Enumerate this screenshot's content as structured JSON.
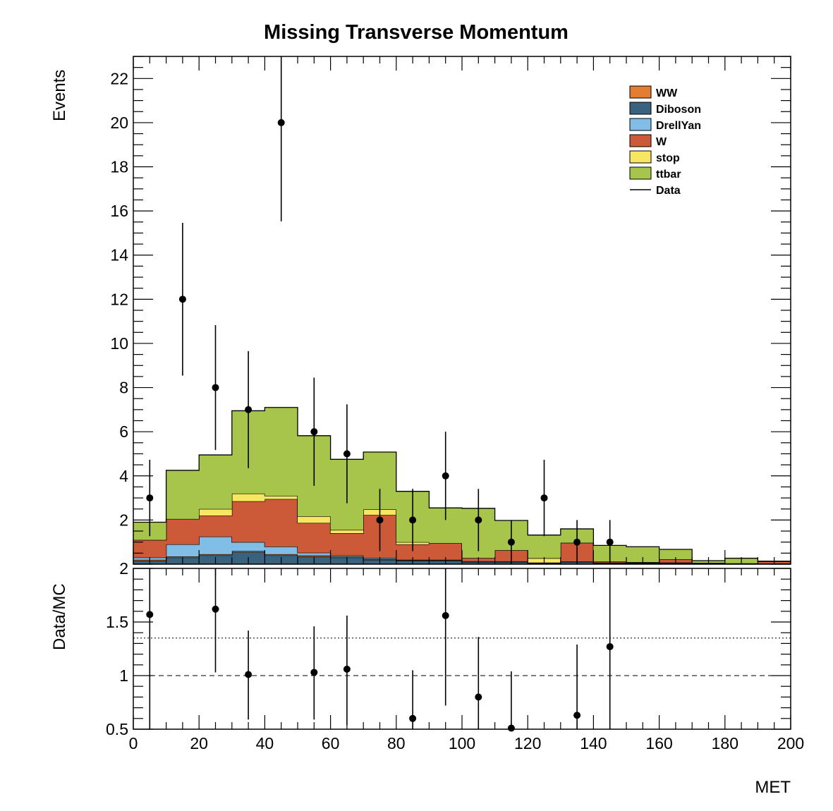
{
  "colors": {
    "WW": "#e27d32",
    "Diboson": "#39627f",
    "DrellYan": "#80bde7",
    "W": "#cc5a39",
    "stop": "#f7e661",
    "ttbar": "#a7c44b",
    "Data": "#000000"
  },
  "chart_data": [
    {
      "type": "bar",
      "stacked": true,
      "title": "Missing Transverse Momentum",
      "xlabel": "",
      "ylabel": "Events",
      "xlim": [
        0,
        200
      ],
      "ylim": [
        0,
        23
      ],
      "bin_edges": [
        0,
        10,
        20,
        30,
        40,
        50,
        60,
        70,
        80,
        90,
        100,
        110,
        120,
        130,
        140,
        150,
        160,
        170,
        180,
        190,
        200
      ],
      "x_ticks": [
        "0",
        "20",
        "40",
        "60",
        "80",
        "100",
        "120",
        "140",
        "160",
        "180",
        "200"
      ],
      "y_ticks": [
        "2",
        "4",
        "6",
        "8",
        "10",
        "12",
        "14",
        "16",
        "18",
        "20",
        "22"
      ],
      "legend_position": "top-right",
      "legend": [
        "WW",
        "Diboson",
        "DrellYan",
        "W",
        "stop",
        "ttbar",
        "Data"
      ],
      "series": [
        {
          "name": "Diboson",
          "values": [
            0.15,
            0.3,
            0.4,
            0.55,
            0.4,
            0.35,
            0.3,
            0.2,
            0.15,
            0.15,
            0.1,
            0.1,
            0.05,
            0.1,
            0.05,
            0.05,
            0.05,
            0.03,
            0.03,
            0.02
          ]
        },
        {
          "name": "WW",
          "values": [
            0.05,
            0.05,
            0.05,
            0.05,
            0.05,
            0.05,
            0.05,
            0.03,
            0.03,
            0.03,
            0.03,
            0.03,
            0.02,
            0.02,
            0.02,
            0.02,
            0.02,
            0.01,
            0.01,
            0.01
          ]
        },
        {
          "name": "DrellYan",
          "values": [
            0.1,
            0.55,
            0.8,
            0.4,
            0.35,
            0.12,
            0.05,
            0.05,
            0.02,
            0.02,
            0.0,
            0.0,
            0.0,
            0.0,
            0.0,
            0.0,
            0.0,
            0.0,
            0.0,
            0.0
          ]
        },
        {
          "name": "W",
          "values": [
            0.8,
            1.15,
            0.95,
            1.85,
            2.15,
            1.35,
            1.0,
            1.95,
            0.7,
            0.75,
            0.15,
            0.5,
            0.0,
            0.85,
            0.05,
            0.02,
            0.15,
            0.02,
            0.0,
            0.1
          ]
        },
        {
          "name": "stop",
          "values": [
            0.0,
            0.0,
            0.3,
            0.35,
            0.15,
            0.3,
            0.15,
            0.25,
            0.1,
            0.0,
            0.0,
            0.0,
            0.2,
            0.0,
            0.0,
            0.0,
            0.0,
            0.0,
            0.0,
            0.0
          ]
        },
        {
          "name": "ttbar",
          "values": [
            0.8,
            2.2,
            2.45,
            3.75,
            4.0,
            3.65,
            3.2,
            2.6,
            2.3,
            1.6,
            2.25,
            1.35,
            1.05,
            0.63,
            0.73,
            0.7,
            0.45,
            0.1,
            0.23,
            0.0
          ]
        }
      ],
      "data_points": [
        {
          "x": 5,
          "y": 3,
          "err": 1.73
        },
        {
          "x": 15,
          "y": 12,
          "err": 3.46
        },
        {
          "x": 25,
          "y": 8,
          "err": 2.83
        },
        {
          "x": 35,
          "y": 7,
          "err": 2.65
        },
        {
          "x": 45,
          "y": 20,
          "err": 4.47
        },
        {
          "x": 55,
          "y": 6,
          "err": 2.45
        },
        {
          "x": 65,
          "y": 5,
          "err": 2.24
        },
        {
          "x": 75,
          "y": 2,
          "err": 1.41
        },
        {
          "x": 85,
          "y": 2,
          "err": 1.41
        },
        {
          "x": 95,
          "y": 4,
          "err": 2.0
        },
        {
          "x": 105,
          "y": 2,
          "err": 1.41
        },
        {
          "x": 115,
          "y": 1,
          "err": 1.0
        },
        {
          "x": 125,
          "y": 3,
          "err": 1.73
        },
        {
          "x": 135,
          "y": 1,
          "err": 1.0
        },
        {
          "x": 145,
          "y": 1,
          "err": 1.0
        }
      ]
    },
    {
      "type": "scatter",
      "title": "",
      "xlabel": "MET",
      "ylabel": "Data/MC",
      "xlim": [
        0,
        200
      ],
      "ylim": [
        0.5,
        2.0
      ],
      "x_ticks": [
        "0",
        "20",
        "40",
        "60",
        "80",
        "100",
        "120",
        "140",
        "160",
        "180",
        "200"
      ],
      "y_ticks": [
        "0.5",
        "1",
        "1.5",
        "2"
      ],
      "reference_lines": [
        {
          "y": 1.0,
          "style": "dashed"
        },
        {
          "y": 1.35,
          "style": "dotted"
        }
      ],
      "points": [
        {
          "x": 5,
          "y": 1.57,
          "lo": 0.5,
          "hi": 2.0
        },
        {
          "x": 25,
          "y": 1.62,
          "lo": 1.03,
          "hi": 2.0
        },
        {
          "x": 35,
          "y": 1.01,
          "lo": 0.59,
          "hi": 1.42
        },
        {
          "x": 55,
          "y": 1.03,
          "lo": 0.59,
          "hi": 1.46
        },
        {
          "x": 65,
          "y": 1.06,
          "lo": 0.54,
          "hi": 1.56
        },
        {
          "x": 85,
          "y": 0.6,
          "lo": 0.5,
          "hi": 1.05
        },
        {
          "x": 95,
          "y": 1.56,
          "lo": 0.72,
          "hi": 2.0
        },
        {
          "x": 105,
          "y": 0.8,
          "lo": 0.5,
          "hi": 1.36
        },
        {
          "x": 115,
          "y": 0.51,
          "lo": 0.5,
          "hi": 1.04
        },
        {
          "x": 135,
          "y": 0.63,
          "lo": 0.5,
          "hi": 1.29
        },
        {
          "x": 145,
          "y": 1.27,
          "lo": 0.5,
          "hi": 2.0
        }
      ]
    }
  ]
}
